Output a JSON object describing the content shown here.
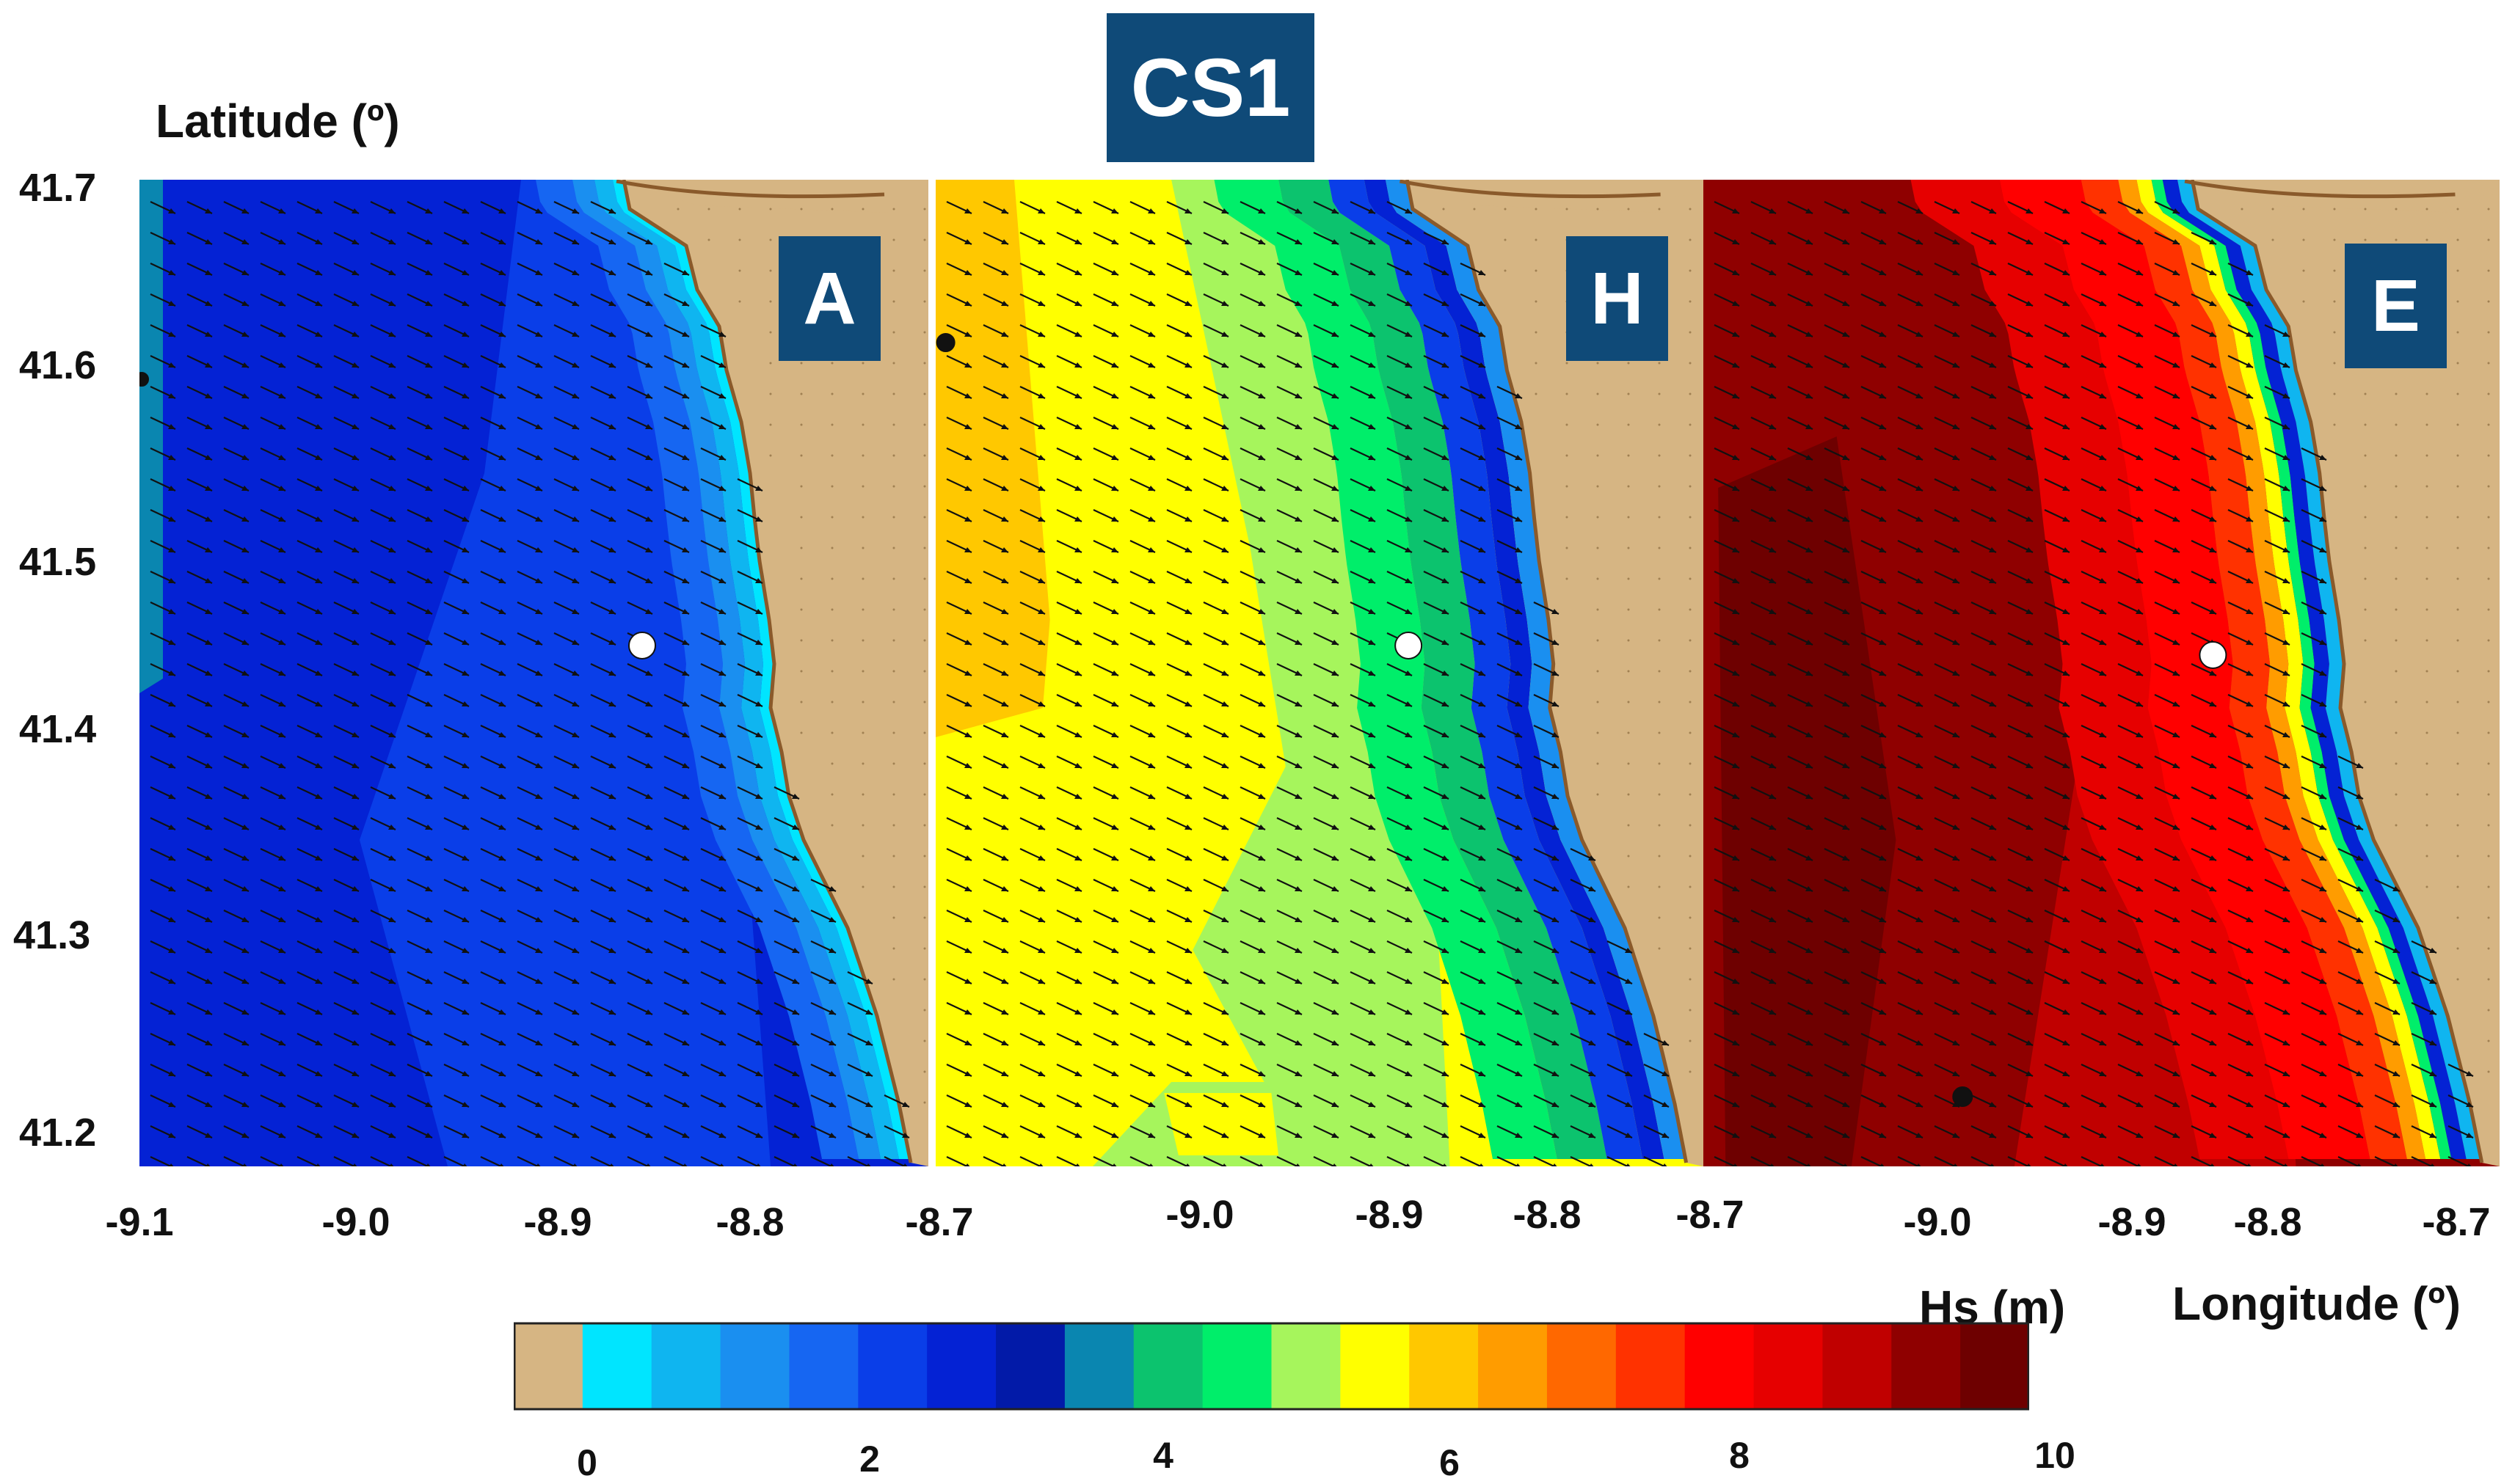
{
  "title": "CS1",
  "axes": {
    "latitude_label": "Latitude (º)",
    "longitude_label": "Longitude (º)",
    "lat_ticks": [
      "41.7",
      "41.6",
      "41.5",
      "41.4",
      "41.3",
      "41.2"
    ],
    "lon_ticks_panel1": [
      "-9.1",
      "-9.0",
      "-8.9",
      "-8.8",
      "-8.7"
    ],
    "lon_ticks_panel2": [
      "-9.0",
      "-8.9",
      "-8.8",
      "-8.7"
    ],
    "lon_ticks_panel3": [
      "-9.0",
      "-8.9",
      "-8.8",
      "-8.7"
    ]
  },
  "panels": [
    {
      "label": "A"
    },
    {
      "label": "H"
    },
    {
      "label": "E"
    }
  ],
  "colorbar": {
    "label": "Hs (m)",
    "ticks": [
      "0",
      "2",
      "4",
      "6",
      "8",
      "10"
    ],
    "land_color": "#d6b583",
    "colors": [
      "#00e5ff",
      "#0fb5f0",
      "#1a8ff0",
      "#1666f2",
      "#0a3ee8",
      "#0422d4",
      "#021aa8",
      "#0a86b0",
      "#0cc36e",
      "#00ee6a",
      "#a6f55c",
      "#ffff00",
      "#ffc800",
      "#ff9c00",
      "#ff6800",
      "#ff3200",
      "#ff0000",
      "#e60000",
      "#c00000",
      "#8f0000",
      "#6e0000"
    ]
  }
}
